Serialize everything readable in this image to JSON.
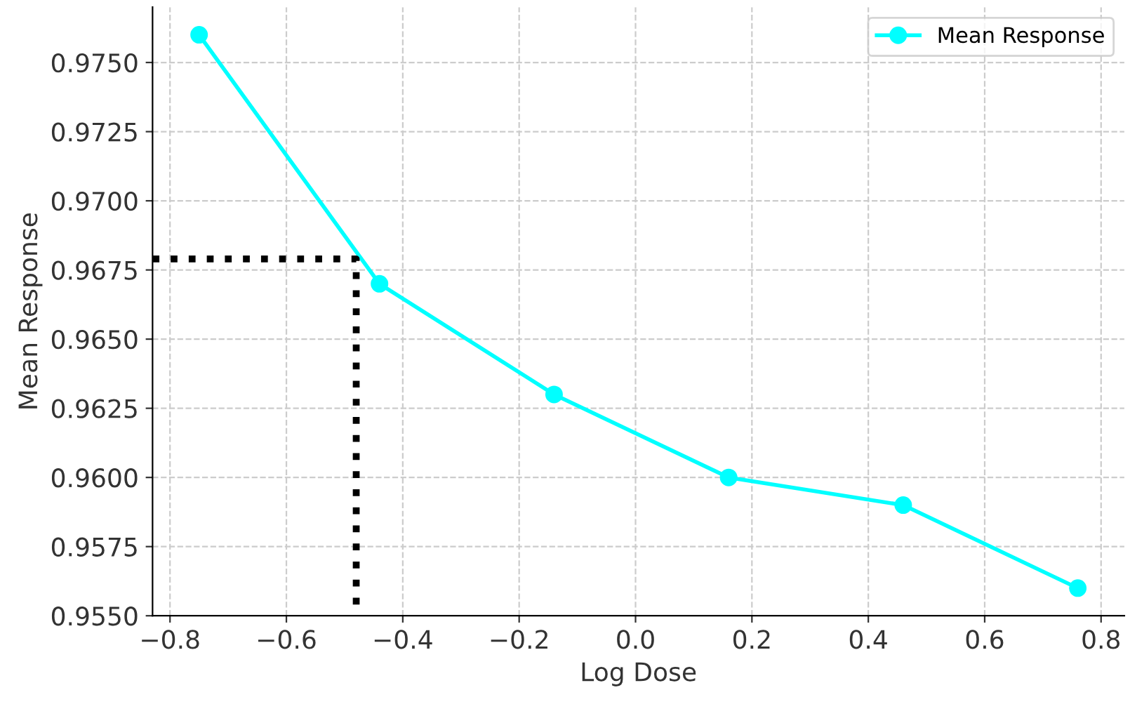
{
  "chart_data": {
    "type": "line",
    "xlabel": "Log Dose",
    "ylabel": "Mean Response",
    "xlim": [
      -0.83,
      0.84
    ],
    "ylim": [
      0.955,
      0.977
    ],
    "xticks": [
      {
        "value": -0.8,
        "label": "−0.8"
      },
      {
        "value": -0.6,
        "label": "−0.6"
      },
      {
        "value": -0.4,
        "label": "−0.4"
      },
      {
        "value": -0.2,
        "label": "−0.2"
      },
      {
        "value": 0.0,
        "label": "0.0"
      },
      {
        "value": 0.2,
        "label": "0.2"
      },
      {
        "value": 0.4,
        "label": "0.4"
      },
      {
        "value": 0.6,
        "label": "0.6"
      },
      {
        "value": 0.8,
        "label": "0.8"
      }
    ],
    "yticks": [
      {
        "value": 0.955,
        "label": "0.9550"
      },
      {
        "value": 0.9575,
        "label": "0.9575"
      },
      {
        "value": 0.96,
        "label": "0.9600"
      },
      {
        "value": 0.9625,
        "label": "0.9625"
      },
      {
        "value": 0.965,
        "label": "0.9650"
      },
      {
        "value": 0.9675,
        "label": "0.9675"
      },
      {
        "value": 0.97,
        "label": "0.9700"
      },
      {
        "value": 0.9725,
        "label": "0.9725"
      },
      {
        "value": 0.975,
        "label": "0.9750"
      }
    ],
    "grid": true,
    "legend": "top right",
    "series": [
      {
        "name": "Mean Response",
        "color": "#00ffff",
        "marker": "circle",
        "line_style": "solid",
        "x": [
          -0.75,
          -0.44,
          -0.14,
          0.16,
          0.46,
          0.76
        ],
        "values": [
          0.976,
          0.967,
          0.963,
          0.96,
          0.959,
          0.956
        ]
      },
      {
        "color": "#000000",
        "marker": "none",
        "line_style": "dotted",
        "x": [
          -0.83,
          -0.48,
          -0.48
        ],
        "values": [
          0.9679,
          0.9679,
          0.955
        ]
      }
    ]
  }
}
